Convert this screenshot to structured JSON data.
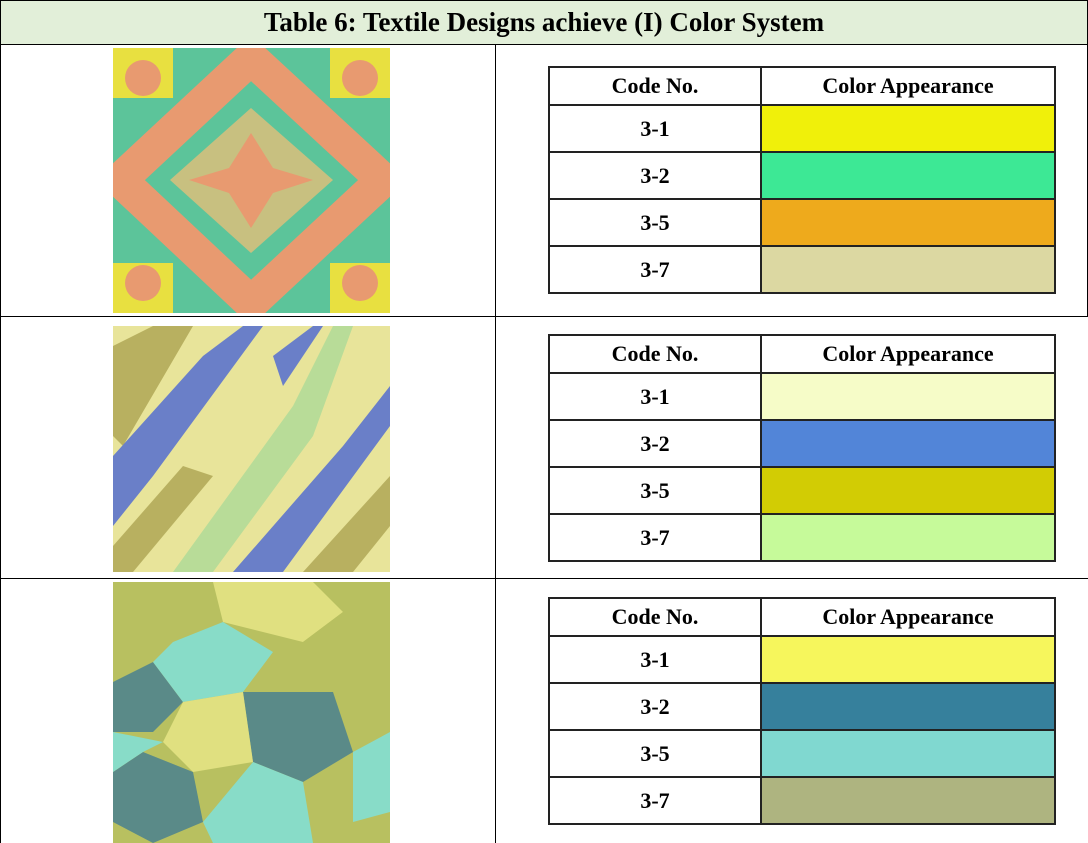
{
  "title": "Table 6: Textile Designs achieve (I) Color System",
  "rows": [
    {
      "headers": [
        "Code No.",
        "Color Appearance"
      ],
      "entries": [
        {
          "code": "3-1",
          "color": "#f0f00a"
        },
        {
          "code": "3-2",
          "color": "#3de895"
        },
        {
          "code": "3-5",
          "color": "#eeaa1c"
        },
        {
          "code": "3-7",
          "color": "#dcd8a2"
        }
      ]
    },
    {
      "headers": [
        "Code No.",
        "Color Appearance"
      ],
      "entries": [
        {
          "code": "3-1",
          "color": "#f6fcc8"
        },
        {
          "code": "3-2",
          "color": "#5285d8"
        },
        {
          "code": "3-5",
          "color": "#d2cc04"
        },
        {
          "code": "3-7",
          "color": "#c6fa9a"
        }
      ]
    },
    {
      "headers": [
        "Code No.",
        "Color Appearance"
      ],
      "entries": [
        {
          "code": "3-1",
          "color": "#f6f65c"
        },
        {
          "code": "3-2",
          "color": "#36809c"
        },
        {
          "code": "3-5",
          "color": "#80d8d0"
        },
        {
          "code": "3-7",
          "color": "#aeb480"
        }
      ]
    }
  ]
}
